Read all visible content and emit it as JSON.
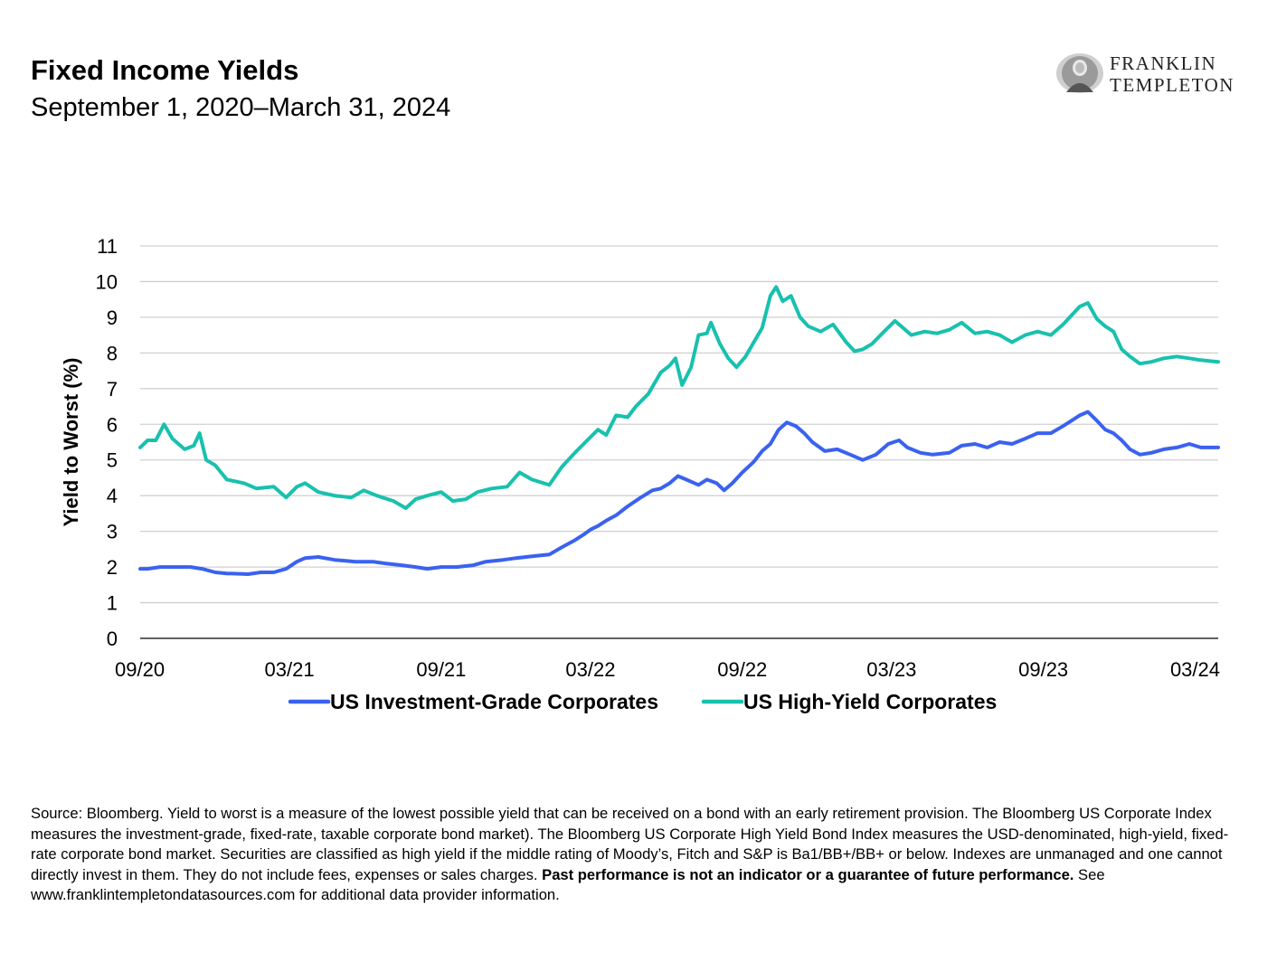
{
  "header": {
    "title": "Fixed Income Yields",
    "subtitle": "September 1, 2020–March 31, 2024"
  },
  "logo": {
    "line1": "FRANKLIN",
    "line2": "TEMPLETON"
  },
  "footnote": {
    "text_before_bold": "Source: Bloomberg. Yield to worst is a measure of the lowest possible yield that can be received on a bond with an early retirement provision. The Bloomberg US Corporate Index measures the investment-grade, fixed-rate, taxable corporate bond market). The Bloomberg US Corporate High Yield Bond Index measures the USD-denominated, high-yield, fixed-rate corporate bond market. Securities are classified as high yield if the middle rating of Moody’s, Fitch and S&P is Ba1/BB+/BB+ or below. Indexes are unmanaged and one cannot directly invest in them. They do not include fees, expenses or sales charges.",
    "bold_text": "Past performance is not an indicator or a guarantee of future performance.",
    "text_after_bold": "See www.franklintempletondatasources.com for additional data provider information."
  },
  "chart_data": {
    "type": "line",
    "ylabel": "Yield to Worst (%)",
    "ylim": [
      0,
      11
    ],
    "yticks": [
      0,
      1,
      2,
      3,
      4,
      5,
      6,
      7,
      8,
      9,
      10,
      11
    ],
    "xlim": [
      "2020-09-01",
      "2024-03-31"
    ],
    "xtick_labels": [
      "09/20",
      "03/21",
      "09/21",
      "03/22",
      "09/22",
      "03/23",
      "09/23",
      "03/24"
    ],
    "xtick_dates": [
      "2020-09-01",
      "2021-03-01",
      "2021-09-01",
      "2022-03-01",
      "2022-09-01",
      "2023-03-01",
      "2023-09-01",
      "2024-03-31"
    ],
    "grid": true,
    "legend_position": "bottom",
    "series": [
      {
        "name": "US Investment-Grade Corporates",
        "color": "#3A62F0",
        "points": [
          [
            "2020-09-01",
            1.95
          ],
          [
            "2020-09-10",
            1.95
          ],
          [
            "2020-09-25",
            2.0
          ],
          [
            "2020-10-15",
            2.0
          ],
          [
            "2020-11-01",
            2.0
          ],
          [
            "2020-11-15",
            1.95
          ],
          [
            "2020-12-01",
            1.85
          ],
          [
            "2020-12-15",
            1.82
          ],
          [
            "2021-01-10",
            1.8
          ],
          [
            "2021-01-25",
            1.85
          ],
          [
            "2021-02-10",
            1.85
          ],
          [
            "2021-02-25",
            1.95
          ],
          [
            "2021-03-10",
            2.15
          ],
          [
            "2021-03-20",
            2.25
          ],
          [
            "2021-04-05",
            2.28
          ],
          [
            "2021-04-25",
            2.2
          ],
          [
            "2021-05-20",
            2.15
          ],
          [
            "2021-06-10",
            2.15
          ],
          [
            "2021-06-25",
            2.1
          ],
          [
            "2021-07-15",
            2.05
          ],
          [
            "2021-08-01",
            2.0
          ],
          [
            "2021-08-15",
            1.95
          ],
          [
            "2021-09-01",
            2.0
          ],
          [
            "2021-09-20",
            2.0
          ],
          [
            "2021-10-10",
            2.05
          ],
          [
            "2021-10-25",
            2.15
          ],
          [
            "2021-11-15",
            2.2
          ],
          [
            "2021-12-01",
            2.25
          ],
          [
            "2021-12-20",
            2.3
          ],
          [
            "2022-01-10",
            2.35
          ],
          [
            "2022-01-25",
            2.55
          ],
          [
            "2022-02-10",
            2.75
          ],
          [
            "2022-02-20",
            2.9
          ],
          [
            "2022-03-01",
            3.05
          ],
          [
            "2022-03-10",
            3.15
          ],
          [
            "2022-03-20",
            3.3
          ],
          [
            "2022-04-01",
            3.45
          ],
          [
            "2022-04-15",
            3.7
          ],
          [
            "2022-05-01",
            3.95
          ],
          [
            "2022-05-15",
            4.15
          ],
          [
            "2022-05-25",
            4.2
          ],
          [
            "2022-06-05",
            4.35
          ],
          [
            "2022-06-15",
            4.55
          ],
          [
            "2022-06-25",
            4.45
          ],
          [
            "2022-07-10",
            4.3
          ],
          [
            "2022-07-20",
            4.45
          ],
          [
            "2022-08-01",
            4.35
          ],
          [
            "2022-08-10",
            4.15
          ],
          [
            "2022-08-20",
            4.35
          ],
          [
            "2022-09-01",
            4.65
          ],
          [
            "2022-09-15",
            4.95
          ],
          [
            "2022-09-25",
            5.25
          ],
          [
            "2022-10-05",
            5.45
          ],
          [
            "2022-10-15",
            5.85
          ],
          [
            "2022-10-25",
            6.05
          ],
          [
            "2022-11-05",
            5.95
          ],
          [
            "2022-11-15",
            5.75
          ],
          [
            "2022-11-25",
            5.5
          ],
          [
            "2022-12-10",
            5.25
          ],
          [
            "2022-12-25",
            5.3
          ],
          [
            "2023-01-10",
            5.15
          ],
          [
            "2023-01-25",
            5.0
          ],
          [
            "2023-02-10",
            5.15
          ],
          [
            "2023-02-25",
            5.45
          ],
          [
            "2023-03-10",
            5.55
          ],
          [
            "2023-03-20",
            5.35
          ],
          [
            "2023-04-05",
            5.2
          ],
          [
            "2023-04-20",
            5.15
          ],
          [
            "2023-05-10",
            5.2
          ],
          [
            "2023-05-25",
            5.4
          ],
          [
            "2023-06-10",
            5.45
          ],
          [
            "2023-06-25",
            5.35
          ],
          [
            "2023-07-10",
            5.5
          ],
          [
            "2023-07-25",
            5.45
          ],
          [
            "2023-08-10",
            5.6
          ],
          [
            "2023-08-25",
            5.75
          ],
          [
            "2023-09-10",
            5.75
          ],
          [
            "2023-09-25",
            5.95
          ],
          [
            "2023-10-05",
            6.1
          ],
          [
            "2023-10-15",
            6.25
          ],
          [
            "2023-10-25",
            6.35
          ],
          [
            "2023-11-05",
            6.1
          ],
          [
            "2023-11-15",
            5.85
          ],
          [
            "2023-11-25",
            5.75
          ],
          [
            "2023-12-05",
            5.55
          ],
          [
            "2023-12-15",
            5.3
          ],
          [
            "2023-12-27",
            5.15
          ],
          [
            "2024-01-10",
            5.2
          ],
          [
            "2024-01-25",
            5.3
          ],
          [
            "2024-02-10",
            5.35
          ],
          [
            "2024-02-25",
            5.45
          ],
          [
            "2024-03-10",
            5.35
          ],
          [
            "2024-03-31",
            5.35
          ]
        ]
      },
      {
        "name": "US High-Yield Corporates",
        "color": "#18C1AE",
        "points": [
          [
            "2020-09-01",
            5.35
          ],
          [
            "2020-09-10",
            5.55
          ],
          [
            "2020-09-20",
            5.55
          ],
          [
            "2020-09-30",
            6.0
          ],
          [
            "2020-10-10",
            5.6
          ],
          [
            "2020-10-25",
            5.3
          ],
          [
            "2020-11-05",
            5.4
          ],
          [
            "2020-11-12",
            5.75
          ],
          [
            "2020-11-20",
            5.0
          ],
          [
            "2020-12-01",
            4.85
          ],
          [
            "2020-12-15",
            4.45
          ],
          [
            "2021-01-05",
            4.35
          ],
          [
            "2021-01-20",
            4.2
          ],
          [
            "2021-02-10",
            4.25
          ],
          [
            "2021-02-25",
            3.95
          ],
          [
            "2021-03-10",
            4.25
          ],
          [
            "2021-03-20",
            4.35
          ],
          [
            "2021-04-05",
            4.1
          ],
          [
            "2021-04-25",
            4.0
          ],
          [
            "2021-05-15",
            3.95
          ],
          [
            "2021-05-30",
            4.15
          ],
          [
            "2021-06-15",
            4.0
          ],
          [
            "2021-07-05",
            3.85
          ],
          [
            "2021-07-20",
            3.65
          ],
          [
            "2021-08-01",
            3.9
          ],
          [
            "2021-08-15",
            4.0
          ],
          [
            "2021-09-01",
            4.1
          ],
          [
            "2021-09-15",
            3.85
          ],
          [
            "2021-10-01",
            3.9
          ],
          [
            "2021-10-15",
            4.1
          ],
          [
            "2021-11-01",
            4.2
          ],
          [
            "2021-11-20",
            4.25
          ],
          [
            "2021-12-05",
            4.65
          ],
          [
            "2021-12-20",
            4.45
          ],
          [
            "2022-01-10",
            4.3
          ],
          [
            "2022-01-25",
            4.8
          ],
          [
            "2022-02-10",
            5.2
          ],
          [
            "2022-02-25",
            5.55
          ],
          [
            "2022-03-10",
            5.85
          ],
          [
            "2022-03-20",
            5.7
          ],
          [
            "2022-04-01",
            6.25
          ],
          [
            "2022-04-15",
            6.2
          ],
          [
            "2022-04-25",
            6.5
          ],
          [
            "2022-05-10",
            6.85
          ],
          [
            "2022-05-25",
            7.45
          ],
          [
            "2022-06-05",
            7.65
          ],
          [
            "2022-06-12",
            7.85
          ],
          [
            "2022-06-20",
            7.1
          ],
          [
            "2022-07-01",
            7.6
          ],
          [
            "2022-07-10",
            8.5
          ],
          [
            "2022-07-20",
            8.55
          ],
          [
            "2022-07-25",
            8.85
          ],
          [
            "2022-08-05",
            8.25
          ],
          [
            "2022-08-15",
            7.85
          ],
          [
            "2022-08-25",
            7.6
          ],
          [
            "2022-09-05",
            7.9
          ],
          [
            "2022-09-15",
            8.3
          ],
          [
            "2022-09-25",
            8.7
          ],
          [
            "2022-10-05",
            9.6
          ],
          [
            "2022-10-12",
            9.85
          ],
          [
            "2022-10-20",
            9.45
          ],
          [
            "2022-10-30",
            9.6
          ],
          [
            "2022-11-10",
            9.0
          ],
          [
            "2022-11-20",
            8.75
          ],
          [
            "2022-12-05",
            8.6
          ],
          [
            "2022-12-20",
            8.8
          ],
          [
            "2023-01-05",
            8.3
          ],
          [
            "2023-01-15",
            8.05
          ],
          [
            "2023-01-25",
            8.1
          ],
          [
            "2023-02-05",
            8.25
          ],
          [
            "2023-02-20",
            8.6
          ],
          [
            "2023-03-05",
            8.9
          ],
          [
            "2023-03-15",
            8.7
          ],
          [
            "2023-03-25",
            8.5
          ],
          [
            "2023-04-10",
            8.6
          ],
          [
            "2023-04-25",
            8.55
          ],
          [
            "2023-05-10",
            8.65
          ],
          [
            "2023-05-25",
            8.85
          ],
          [
            "2023-06-10",
            8.55
          ],
          [
            "2023-06-25",
            8.6
          ],
          [
            "2023-07-10",
            8.5
          ],
          [
            "2023-07-25",
            8.3
          ],
          [
            "2023-08-10",
            8.5
          ],
          [
            "2023-08-25",
            8.6
          ],
          [
            "2023-09-10",
            8.5
          ],
          [
            "2023-09-25",
            8.8
          ],
          [
            "2023-10-05",
            9.05
          ],
          [
            "2023-10-15",
            9.3
          ],
          [
            "2023-10-25",
            9.4
          ],
          [
            "2023-11-05",
            8.95
          ],
          [
            "2023-11-15",
            8.75
          ],
          [
            "2023-11-25",
            8.6
          ],
          [
            "2023-12-05",
            8.1
          ],
          [
            "2023-12-15",
            7.9
          ],
          [
            "2023-12-27",
            7.7
          ],
          [
            "2024-01-10",
            7.75
          ],
          [
            "2024-01-25",
            7.85
          ],
          [
            "2024-02-10",
            7.9
          ],
          [
            "2024-02-25",
            7.85
          ],
          [
            "2024-03-10",
            7.8
          ],
          [
            "2024-03-31",
            7.75
          ]
        ]
      }
    ]
  }
}
